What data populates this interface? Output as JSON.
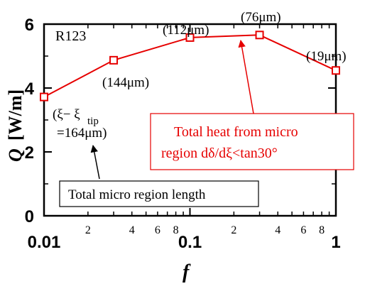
{
  "chart_data": {
    "type": "line",
    "title": "",
    "panel_label": "R123",
    "xlabel": "f",
    "ylabel": {
      "symbol": "Q",
      "unit": "[W/m]"
    },
    "x_scale": "log",
    "xlim": [
      0.01,
      1
    ],
    "ylim": [
      0,
      6
    ],
    "x_major_ticks": [
      {
        "value": 0.01,
        "label": "0.01"
      },
      {
        "value": 0.1,
        "label": "0.1"
      },
      {
        "value": 1,
        "label": "1"
      }
    ],
    "x_minor_labeled": [
      {
        "value": 0.02,
        "label": "2"
      },
      {
        "value": 0.04,
        "label": "4"
      },
      {
        "value": 0.06,
        "label": "6"
      },
      {
        "value": 0.08,
        "label": "8"
      },
      {
        "value": 0.2,
        "label": "2"
      },
      {
        "value": 0.4,
        "label": "4"
      },
      {
        "value": 0.6,
        "label": "6"
      },
      {
        "value": 0.8,
        "label": "8"
      }
    ],
    "y_ticks": [
      {
        "value": 0,
        "label": "0"
      },
      {
        "value": 2,
        "label": "2"
      },
      {
        "value": 4,
        "label": "4"
      },
      {
        "value": 6,
        "label": "6"
      }
    ],
    "series": [
      {
        "color": "#e60000",
        "marker": "open-square",
        "x": [
          0.01,
          0.03,
          0.1,
          0.3,
          1
        ],
        "y": [
          3.72,
          4.87,
          5.58,
          5.66,
          4.55
        ]
      }
    ],
    "point_labels": [
      {
        "text": "(144μm)"
      },
      {
        "text": "(112μm)"
      },
      {
        "text": "(76μm)"
      },
      {
        "text": "(19μm)"
      }
    ],
    "annotations": {
      "first_point_line1": "(ξ− ξ",
      "first_point_sub": "tip",
      "first_point_line2": "=164μm)",
      "black_box": "Total micro region length",
      "red_box_line1": "Total heat from micro",
      "red_box_line2": "region dδ/dξ<tan30°"
    }
  },
  "colors": {
    "series": "#e60000",
    "axis": "#000000"
  }
}
